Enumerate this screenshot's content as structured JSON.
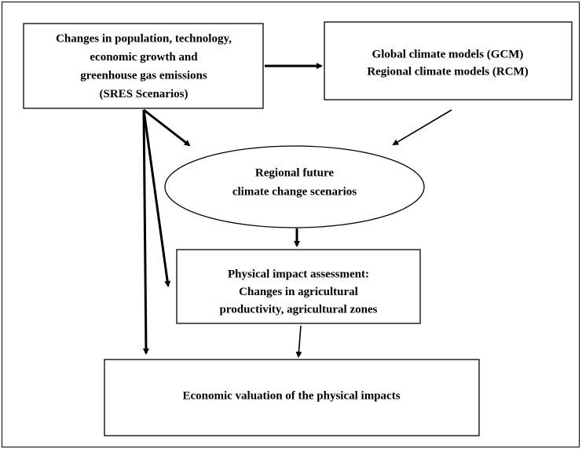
{
  "nodes": [
    {
      "lines": [
        "Changes in population, technology,",
        "economic growth and",
        "greenhouse gas emissions",
        "(SRES Scenarios)"
      ]
    },
    {
      "lines": [
        "Global climate models (GCM)",
        "Regional climate models (RCM)"
      ]
    },
    {
      "lines": [
        "Regional future",
        "climate change scenarios"
      ]
    },
    {
      "lines": [
        "Physical impact assessment:",
        "Changes in agricultural",
        "productivity, agricultural zones"
      ]
    },
    {
      "lines": [
        "Economic valuation of the physical impacts"
      ]
    }
  ]
}
